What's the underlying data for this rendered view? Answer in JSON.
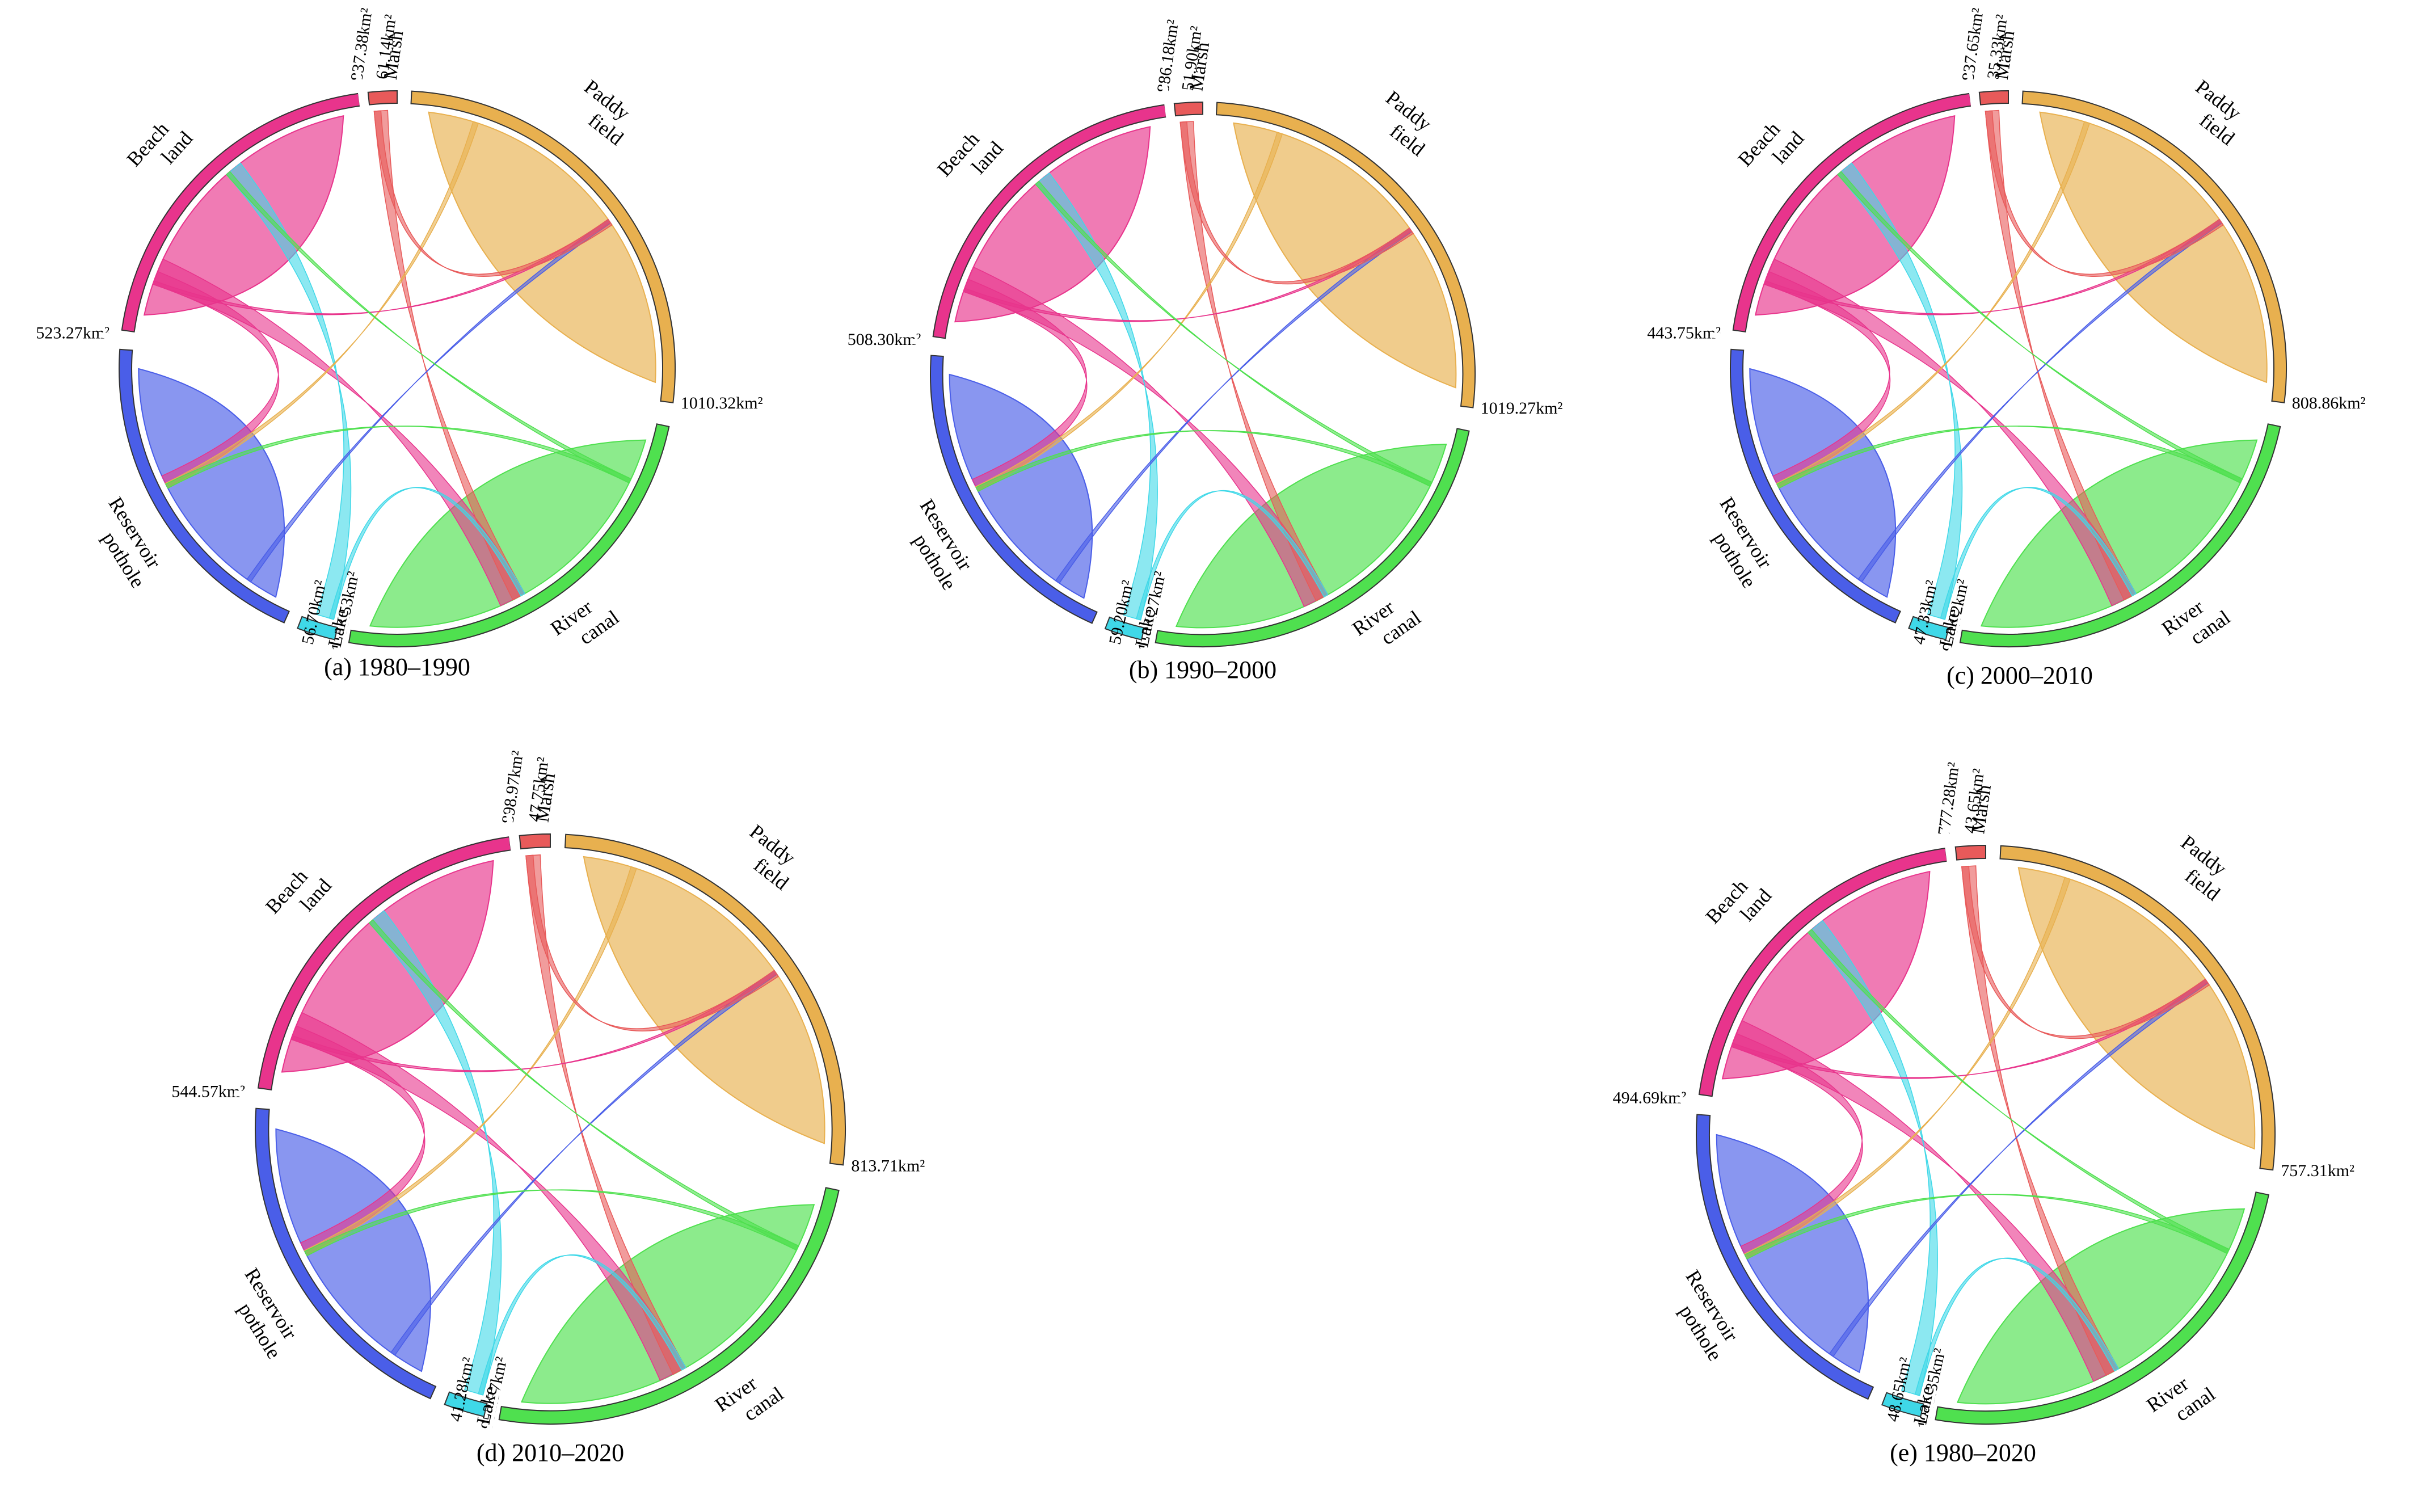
{
  "figure": {
    "panels": [
      {
        "caption": "(a)  1980–1990",
        "categories": [
          {
            "key": "paddy",
            "label": [
              "Paddy",
              "field"
            ],
            "total": "1010.32km²",
            "color": "#e8b04f"
          },
          {
            "key": "river",
            "label": [
              "River",
              "canal"
            ],
            "total": "1153.53km²",
            "color": "#4fe04f"
          },
          {
            "key": "lake",
            "label": [
              "Lake"
            ],
            "total": "56.70km²",
            "color": "#3fd8e8"
          },
          {
            "key": "reservoir",
            "label": [
              "Reservoir",
              "pothole"
            ],
            "total": "523.27km²",
            "color": "#4a5ee8"
          },
          {
            "key": "beach",
            "label": [
              "Beach",
              "land"
            ],
            "total": "837.38km²",
            "color": "#e8348c"
          },
          {
            "key": "marsh",
            "label": [
              "Marsh"
            ],
            "total": "61.14km²",
            "color": "#e85a5a"
          }
        ]
      },
      {
        "caption": "(b)  1990–2000",
        "categories": [
          {
            "key": "paddy",
            "label": [
              "Paddy",
              "field"
            ],
            "total": "1019.27km²",
            "color": "#e8b04f"
          },
          {
            "key": "river",
            "label": [
              "River",
              "canal"
            ],
            "total": "1102.27km²",
            "color": "#4fe04f"
          },
          {
            "key": "lake",
            "label": [
              "Lake"
            ],
            "total": "59.20km²",
            "color": "#3fd8e8"
          },
          {
            "key": "reservoir",
            "label": [
              "Reservoir",
              "pothole"
            ],
            "total": "508.30km²",
            "color": "#4a5ee8"
          },
          {
            "key": "beach",
            "label": [
              "Beach",
              "land"
            ],
            "total": "886.18km²",
            "color": "#e8348c"
          },
          {
            "key": "marsh",
            "label": [
              "Marsh"
            ],
            "total": "51.90km²",
            "color": "#e85a5a"
          }
        ]
      },
      {
        "caption": "(c)  2000–2010",
        "categories": [
          {
            "key": "paddy",
            "label": [
              "Paddy",
              "field"
            ],
            "total": "808.86km²",
            "color": "#e8b04f"
          },
          {
            "key": "river",
            "label": [
              "River",
              "canal"
            ],
            "total": "950.02km²",
            "color": "#4fe04f"
          },
          {
            "key": "lake",
            "label": [
              "Lake"
            ],
            "total": "47.33km²",
            "color": "#3fd8e8"
          },
          {
            "key": "reservoir",
            "label": [
              "Reservoir",
              "pothole"
            ],
            "total": "443.75km²",
            "color": "#4a5ee8"
          },
          {
            "key": "beach",
            "label": [
              "Beach",
              "land"
            ],
            "total": "837.65km²",
            "color": "#e8348c"
          },
          {
            "key": "marsh",
            "label": [
              "Marsh"
            ],
            "total": "35.33km²",
            "color": "#e85a5a"
          }
        ]
      },
      {
        "caption": "(d)  2010–2020",
        "categories": [
          {
            "key": "paddy",
            "label": [
              "Paddy",
              "field"
            ],
            "total": "813.71km²",
            "color": "#e8b04f"
          },
          {
            "key": "river",
            "label": [
              "River",
              "canal"
            ],
            "total": "952.37km²",
            "color": "#4fe04f"
          },
          {
            "key": "lake",
            "label": [
              "Lake"
            ],
            "total": "41.28km²",
            "color": "#3fd8e8"
          },
          {
            "key": "reservoir",
            "label": [
              "Reservoir",
              "pothole"
            ],
            "total": "544.57km²",
            "color": "#4a5ee8"
          },
          {
            "key": "beach",
            "label": [
              "Beach",
              "land"
            ],
            "total": "898.97km²",
            "color": "#e8348c"
          },
          {
            "key": "marsh",
            "label": [
              "Marsh"
            ],
            "total": "47.75km²",
            "color": "#e85a5a"
          }
        ]
      },
      {
        "caption": "(e)  1980–2020",
        "categories": [
          {
            "key": "paddy",
            "label": [
              "Paddy",
              "field"
            ],
            "total": "757.31km²",
            "color": "#e8b04f"
          },
          {
            "key": "river",
            "label": [
              "River",
              "canal"
            ],
            "total": "1041.35km²",
            "color": "#4fe04f"
          },
          {
            "key": "lake",
            "label": [
              "Lake"
            ],
            "total": "48.65km²",
            "color": "#3fd8e8"
          },
          {
            "key": "reservoir",
            "label": [
              "Reservoir",
              "pothole"
            ],
            "total": "494.69km²",
            "color": "#4a5ee8"
          },
          {
            "key": "beach",
            "label": [
              "Beach",
              "land"
            ],
            "total": "777.28km²",
            "color": "#e8348c"
          },
          {
            "key": "marsh",
            "label": [
              "Marsh"
            ],
            "total": "43.65km²",
            "color": "#e85a5a"
          }
        ]
      }
    ]
  }
}
